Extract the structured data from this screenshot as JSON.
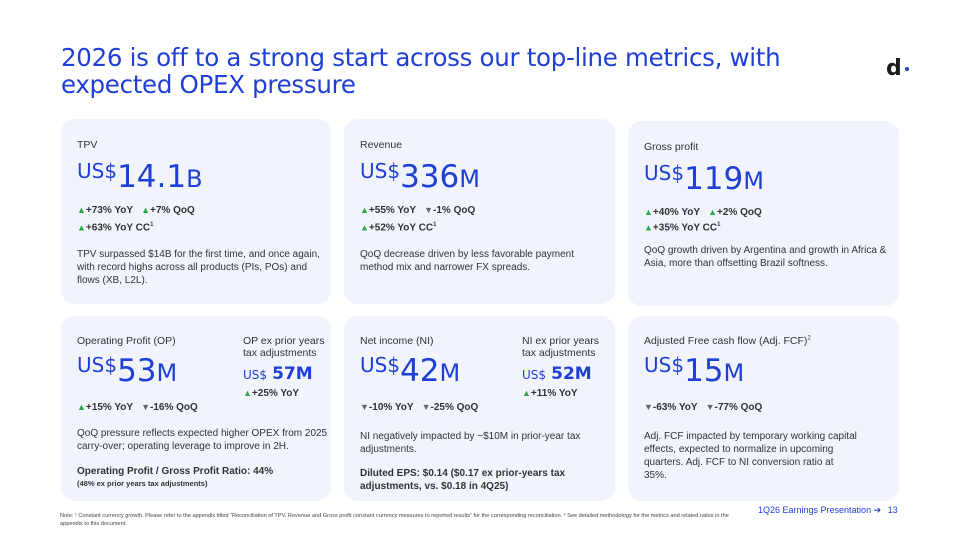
{
  "title": "2026 is off to a strong start across our top-line metrics, with expected OPEX pressure",
  "logo": "d",
  "cards": {
    "tpv": {
      "label": "TPV",
      "currency": "US$",
      "number": "14.1",
      "unit": "B",
      "yoy": "+73% YoY",
      "qoq": "+7% QoQ",
      "yoy_cc": "+63% YoY CC",
      "desc": "TPV surpassed $14B for the first time, and once again, with record highs across all products (PIs, POs) and flows (XB, L2L)."
    },
    "revenue": {
      "label": "Revenue",
      "currency": "US$",
      "number": "336",
      "unit": "M",
      "yoy": "+55% YoY",
      "qoq": "-1% QoQ",
      "yoy_cc": "+52% YoY CC",
      "desc": "QoQ decrease driven by less favorable payment method mix and narrower FX spreads."
    },
    "gross_profit": {
      "label": "Gross profit",
      "currency": "US$",
      "number": "119",
      "unit": "M",
      "yoy": "+40% YoY",
      "qoq": "+2% QoQ",
      "yoy_cc": "+35% YoY CC",
      "desc": "QoQ growth driven by Argentina and growth in Africa & Asia, more than offsetting Brazil softness."
    },
    "op": {
      "label": "Operating Profit (OP)",
      "currency": "US$",
      "number": "53",
      "unit": "M",
      "yoy": "+15% YoY",
      "qoq": "-16% QoQ",
      "sub_label": "OP ex prior years tax adjustments",
      "sub_currency": "US$",
      "sub_value": "57M",
      "sub_yoy": "+25% YoY",
      "desc": "QoQ pressure reflects expected higher OPEX from 2025 carry-over; operating leverage to improve in 2H.",
      "ratio": "Operating Profit / Gross Profit Ratio: 44%",
      "ratio_note": "(48% ex prior years tax adjustments)"
    },
    "ni": {
      "label": "Net income (NI)",
      "currency": "US$",
      "number": "42",
      "unit": "M",
      "yoy": "-10% YoY",
      "qoq": "-25% QoQ",
      "sub_label": "NI ex prior years tax adjustments",
      "sub_currency": "US$",
      "sub_value": "52M",
      "sub_yoy": "+11% YoY",
      "desc": "NI negatively impacted by ~$10M in prior-year tax adjustments.",
      "eps": "Diluted EPS: $0.14 ($0.17 ex prior-years tax adjustments, vs. $0.18 in 4Q25)"
    },
    "fcf": {
      "label": "Adjusted Free cash flow (Adj. FCF)",
      "currency": "US$",
      "number": "15",
      "unit": "M",
      "yoy": "-63% YoY",
      "qoq": "-77% QoQ",
      "desc": "Adj. FCF impacted by temporary working capital effects, expected to normalize in upcoming quarters. Adj. FCF to NI conversion ratio at 35%."
    }
  },
  "footnote": "Note: ¹ Constant currency growth. Please refer to the appendix titled “Reconciliation of TPV, Revenue and Gross profit constant currency measures to reported results” for the corresponding reconciliation. ² See detailed methodology for the metrics and related ratios in the appendix to this document.",
  "footer": {
    "label": "1Q26 Earnings Presentation",
    "arrow": "➔",
    "page": "13"
  },
  "colors": {
    "accent": "#1f3fd6",
    "card_bg": "#f1f4fd",
    "up": "#2ca84a"
  }
}
